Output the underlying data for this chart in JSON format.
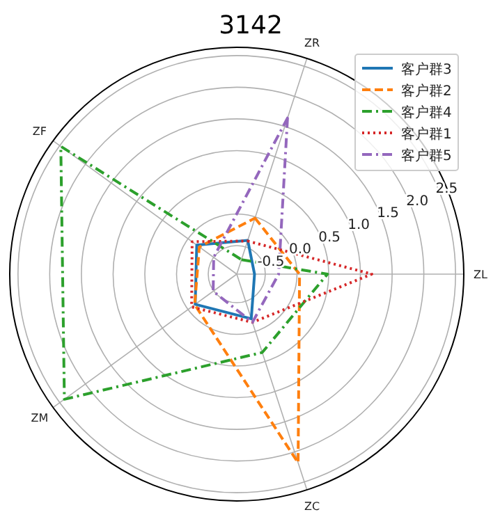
{
  "chart_data": {
    "type": "radar",
    "title": "3142",
    "categories": [
      "ZR",
      "ZL",
      "ZC",
      "ZM",
      "ZF"
    ],
    "ylim": [
      -0.95,
      2.63
    ],
    "yticks": [
      -0.5,
      {
        "value": 0,
        "label": "0.0"
      },
      0.5,
      {
        "value": 1,
        "label": "1.0"
      },
      1.5,
      {
        "value": 2,
        "label": "2.0"
      },
      2.5
    ],
    "grid": true,
    "legend": "top right",
    "series": [
      {
        "name": "客户群3",
        "color": "#1f77b4",
        "line_style": "solid",
        "values": [
          -0.39,
          -0.67,
          -0.21,
          -0.14,
          -0.17
        ]
      },
      {
        "name": "客户群2",
        "color": "#ff7f0e",
        "line_style": "dashed",
        "values": [
          -0.02,
          0.04,
          2.18,
          -0.13,
          -0.22
        ]
      },
      {
        "name": "客户群4",
        "color": "#2ca02c",
        "line_style": "dashdot",
        "values": [
          -0.71,
          0.48,
          0.35,
          2.41,
          2.48
        ]
      },
      {
        "name": "客户群1",
        "color": "#d62728",
        "line_style": "dotted",
        "values": [
          -0.4,
          1.18,
          -0.15,
          -0.07,
          -0.08
        ]
      },
      {
        "name": "客户群5",
        "color": "#9467bd",
        "line_style": "dashdot",
        "values": [
          1.64,
          -0.29,
          -0.15,
          -0.49,
          -0.5
        ]
      }
    ]
  }
}
